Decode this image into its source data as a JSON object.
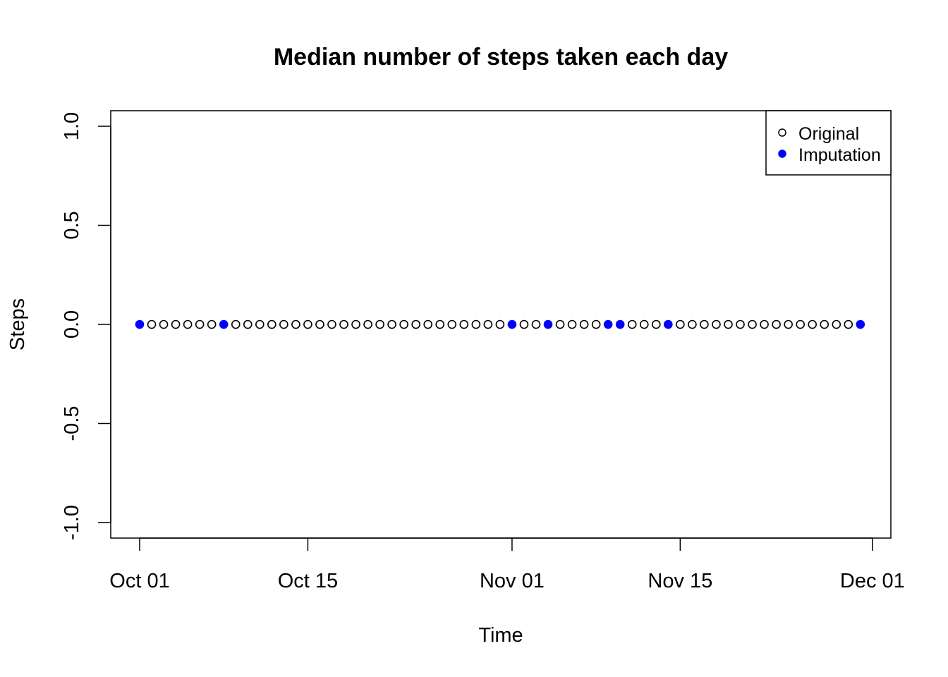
{
  "chart_data": {
    "type": "scatter",
    "title": "Median number of steps taken each day",
    "xlabel": "Time",
    "ylabel": "Steps",
    "xlim": [
      "2012-10-01",
      "2012-11-30"
    ],
    "ylim": [
      -1.0,
      1.0
    ],
    "x_ticks": [
      {
        "date": "2012-10-01",
        "label": "Oct 01"
      },
      {
        "date": "2012-10-15",
        "label": "Oct 15"
      },
      {
        "date": "2012-11-01",
        "label": "Nov 01"
      },
      {
        "date": "2012-11-15",
        "label": "Nov 15"
      },
      {
        "date": "2012-12-01",
        "label": "Dec 01"
      }
    ],
    "y_ticks": [
      {
        "value": 1.0,
        "label": "1.0"
      },
      {
        "value": 0.5,
        "label": "0.5"
      },
      {
        "value": 0.0,
        "label": "0.0"
      },
      {
        "value": -0.5,
        "label": "-0.5"
      },
      {
        "value": -1.0,
        "label": "-1.0"
      }
    ],
    "grid": false,
    "legend_position": "top-right",
    "series": [
      {
        "name": "Original",
        "marker": "open-circle",
        "color": "#000000",
        "points": [
          {
            "x": "2012-10-02",
            "y": 0
          },
          {
            "x": "2012-10-03",
            "y": 0
          },
          {
            "x": "2012-10-04",
            "y": 0
          },
          {
            "x": "2012-10-05",
            "y": 0
          },
          {
            "x": "2012-10-06",
            "y": 0
          },
          {
            "x": "2012-10-07",
            "y": 0
          },
          {
            "x": "2012-10-09",
            "y": 0
          },
          {
            "x": "2012-10-10",
            "y": 0
          },
          {
            "x": "2012-10-11",
            "y": 0
          },
          {
            "x": "2012-10-12",
            "y": 0
          },
          {
            "x": "2012-10-13",
            "y": 0
          },
          {
            "x": "2012-10-14",
            "y": 0
          },
          {
            "x": "2012-10-15",
            "y": 0
          },
          {
            "x": "2012-10-16",
            "y": 0
          },
          {
            "x": "2012-10-17",
            "y": 0
          },
          {
            "x": "2012-10-18",
            "y": 0
          },
          {
            "x": "2012-10-19",
            "y": 0
          },
          {
            "x": "2012-10-20",
            "y": 0
          },
          {
            "x": "2012-10-21",
            "y": 0
          },
          {
            "x": "2012-10-22",
            "y": 0
          },
          {
            "x": "2012-10-23",
            "y": 0
          },
          {
            "x": "2012-10-24",
            "y": 0
          },
          {
            "x": "2012-10-25",
            "y": 0
          },
          {
            "x": "2012-10-26",
            "y": 0
          },
          {
            "x": "2012-10-27",
            "y": 0
          },
          {
            "x": "2012-10-28",
            "y": 0
          },
          {
            "x": "2012-10-29",
            "y": 0
          },
          {
            "x": "2012-10-30",
            "y": 0
          },
          {
            "x": "2012-10-31",
            "y": 0
          },
          {
            "x": "2012-11-02",
            "y": 0
          },
          {
            "x": "2012-11-03",
            "y": 0
          },
          {
            "x": "2012-11-05",
            "y": 0
          },
          {
            "x": "2012-11-06",
            "y": 0
          },
          {
            "x": "2012-11-07",
            "y": 0
          },
          {
            "x": "2012-11-08",
            "y": 0
          },
          {
            "x": "2012-11-11",
            "y": 0
          },
          {
            "x": "2012-11-12",
            "y": 0
          },
          {
            "x": "2012-11-13",
            "y": 0
          },
          {
            "x": "2012-11-15",
            "y": 0
          },
          {
            "x": "2012-11-16",
            "y": 0
          },
          {
            "x": "2012-11-17",
            "y": 0
          },
          {
            "x": "2012-11-18",
            "y": 0
          },
          {
            "x": "2012-11-19",
            "y": 0
          },
          {
            "x": "2012-11-20",
            "y": 0
          },
          {
            "x": "2012-11-21",
            "y": 0
          },
          {
            "x": "2012-11-22",
            "y": 0
          },
          {
            "x": "2012-11-23",
            "y": 0
          },
          {
            "x": "2012-11-24",
            "y": 0
          },
          {
            "x": "2012-11-25",
            "y": 0
          },
          {
            "x": "2012-11-26",
            "y": 0
          },
          {
            "x": "2012-11-27",
            "y": 0
          },
          {
            "x": "2012-11-28",
            "y": 0
          },
          {
            "x": "2012-11-29",
            "y": 0
          }
        ]
      },
      {
        "name": "Imputation",
        "marker": "filled-circle",
        "color": "#0000ff",
        "points": [
          {
            "x": "2012-10-01",
            "y": 0
          },
          {
            "x": "2012-10-08",
            "y": 0
          },
          {
            "x": "2012-11-01",
            "y": 0
          },
          {
            "x": "2012-11-04",
            "y": 0
          },
          {
            "x": "2012-11-09",
            "y": 0
          },
          {
            "x": "2012-11-10",
            "y": 0
          },
          {
            "x": "2012-11-14",
            "y": 0
          },
          {
            "x": "2012-11-30",
            "y": 0
          }
        ]
      }
    ]
  }
}
